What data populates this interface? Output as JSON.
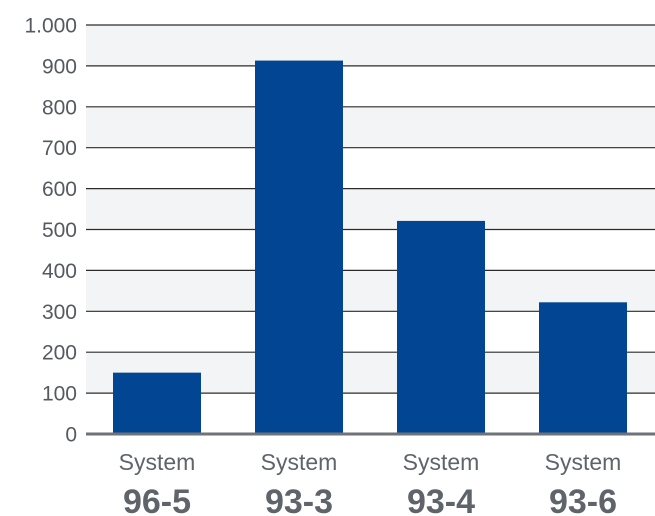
{
  "chart_data": {
    "type": "bar",
    "categories": [
      {
        "line1": "System",
        "line2": "96-5"
      },
      {
        "line1": "System",
        "line2": "93-3"
      },
      {
        "line1": "System",
        "line2": "93-4"
      },
      {
        "line1": "System",
        "line2": "93-6"
      }
    ],
    "values": [
      150,
      913,
      521,
      322
    ],
    "ylim": [
      0,
      1000
    ],
    "yticks": [
      0,
      100,
      200,
      300,
      400,
      500,
      600,
      700,
      800,
      900,
      1000
    ],
    "ytick_labels": [
      "0",
      "100",
      "200",
      "300",
      "400",
      "500",
      "600",
      "700",
      "800",
      "900",
      "1.000"
    ],
    "grid": true,
    "banded_background": true,
    "colors": {
      "bar": "#024592",
      "band": "#f3f4f5",
      "gridline": "#2b2b2b",
      "baseline": "#6e7378",
      "text": "#5f646a"
    }
  }
}
